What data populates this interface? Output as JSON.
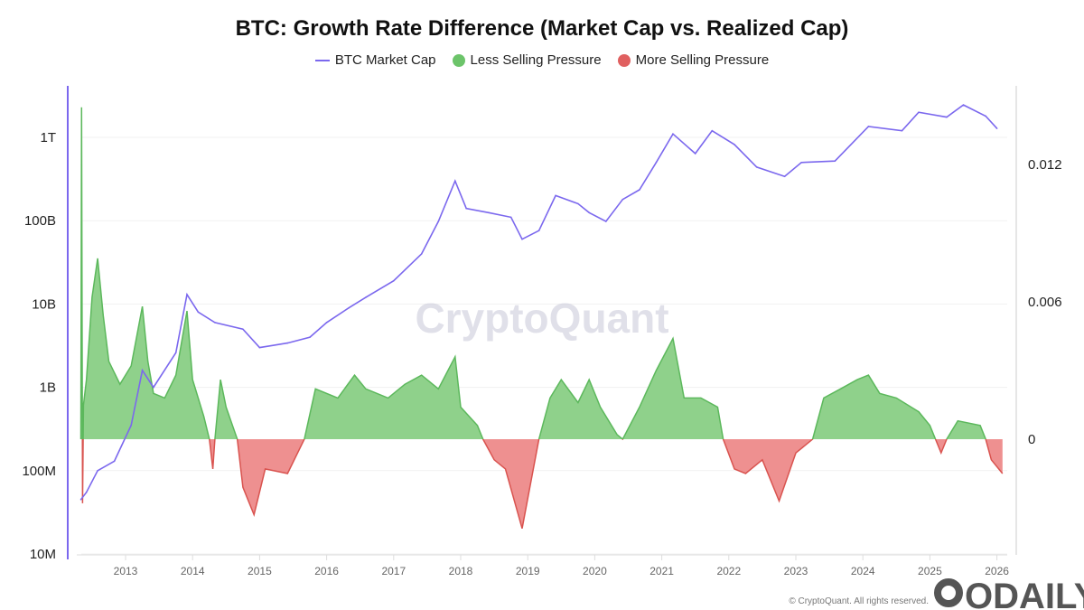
{
  "chart_data": {
    "type": "area",
    "title": "BTC: Growth Rate Difference (Market Cap vs. Realized Cap)",
    "legend": [
      "BTC Market Cap",
      "Less Selling Pressure",
      "More Selling Pressure"
    ],
    "legend_placement": "top",
    "watermark": "CryptoQuant",
    "copyright": "© CryptoQuant. All rights reserved.",
    "logo": "ODAILY",
    "colors": {
      "market_cap": "#7b68ee",
      "positive": "#5cb85c",
      "positive_fill": "#8fd18b",
      "negative": "#d9534f",
      "negative_fill": "#ee9090"
    },
    "x_ticks": [
      "2013",
      "2014",
      "2015",
      "2016",
      "2017",
      "2018",
      "2019",
      "2020",
      "2021",
      "2022",
      "2023",
      "2024",
      "2025",
      "2026"
    ],
    "xlim": [
      "2012-04-20",
      "2026-02-15"
    ],
    "y_left": {
      "scale": "log",
      "ticks": [
        "10M",
        "100M",
        "1B",
        "10B",
        "100B",
        "1T"
      ],
      "tick_values": [
        10000000.0,
        100000000.0,
        1000000000.0,
        10000000000.0,
        100000000000.0,
        1000000000000.0
      ],
      "ylim": [
        10000000.0,
        3500000000000.0
      ]
    },
    "y_right": {
      "scale": "linear",
      "ticks": [
        "0",
        "0.006",
        "0.012"
      ],
      "tick_values": [
        0,
        0.006,
        0.012
      ],
      "ylim": [
        -0.005,
        0.0148
      ]
    },
    "grid": true,
    "series": [
      {
        "name": "BTC Market Cap",
        "axis": "left",
        "points": [
          [
            "2012-05",
            45000000.0
          ],
          [
            "2012-06",
            55000000.0
          ],
          [
            "2012-08",
            100000000.0
          ],
          [
            "2012-11",
            130000000.0
          ],
          [
            "2013-02",
            350000000.0
          ],
          [
            "2013-04",
            1600000000.0
          ],
          [
            "2013-06",
            1000000000.0
          ],
          [
            "2013-10",
            2600000000.0
          ],
          [
            "2013-12",
            13000000000.0
          ],
          [
            "2014-02",
            8000000000.0
          ],
          [
            "2014-05",
            6000000000.0
          ],
          [
            "2014-10",
            5000000000.0
          ],
          [
            "2015-01",
            3000000000.0
          ],
          [
            "2015-06",
            3400000000.0
          ],
          [
            "2015-10",
            4000000000.0
          ],
          [
            "2016-01",
            6000000000.0
          ],
          [
            "2016-05",
            9000000000.0
          ],
          [
            "2016-08",
            12000000000.0
          ],
          [
            "2017-01",
            19000000000.0
          ],
          [
            "2017-06",
            40000000000.0
          ],
          [
            "2017-09",
            98000000000.0
          ],
          [
            "2017-12",
            300000000000.0
          ],
          [
            "2018-02",
            140000000000.0
          ],
          [
            "2018-06",
            125000000000.0
          ],
          [
            "2018-10",
            110000000000.0
          ],
          [
            "2018-12",
            60000000000.0
          ],
          [
            "2019-03",
            76000000000.0
          ],
          [
            "2019-06",
            200000000000.0
          ],
          [
            "2019-10",
            160000000000.0
          ],
          [
            "2019-12",
            125000000000.0
          ],
          [
            "2020-03",
            98000000000.0
          ],
          [
            "2020-06",
            180000000000.0
          ],
          [
            "2020-09",
            235000000000.0
          ],
          [
            "2020-12",
            500000000000.0
          ],
          [
            "2021-03",
            1100000000000.0
          ],
          [
            "2021-07",
            640000000000.0
          ],
          [
            "2021-10",
            1200000000000.0
          ],
          [
            "2022-02",
            820000000000.0
          ],
          [
            "2022-06",
            440000000000.0
          ],
          [
            "2022-11",
            340000000000.0
          ],
          [
            "2023-02",
            500000000000.0
          ],
          [
            "2023-08",
            520000000000.0
          ],
          [
            "2024-02",
            1350000000000.0
          ],
          [
            "2024-08",
            1200000000000.0
          ],
          [
            "2024-11",
            2000000000000.0
          ],
          [
            "2025-04",
            1750000000000.0
          ],
          [
            "2025-07",
            2450000000000.0
          ],
          [
            "2025-11",
            1800000000000.0
          ],
          [
            "2026-01",
            1280000000000.0
          ]
        ]
      },
      {
        "name": "Growth Rate Difference",
        "axis": "right",
        "points": [
          [
            "2012-05-01",
            0
          ],
          [
            "2012-05-05",
            0.0145
          ],
          [
            "2012-05-10",
            -0.0028
          ],
          [
            "2012-05-15",
            0.0015
          ],
          [
            "2012-06",
            0.0026
          ],
          [
            "2012-07",
            0.0062
          ],
          [
            "2012-08",
            0.0079
          ],
          [
            "2012-09",
            0.0054
          ],
          [
            "2012-10",
            0.0034
          ],
          [
            "2012-12",
            0.0024
          ],
          [
            "2013-02",
            0.0032
          ],
          [
            "2013-04",
            0.0058
          ],
          [
            "2013-05",
            0.0034
          ],
          [
            "2013-06",
            0.002
          ],
          [
            "2013-08",
            0.0018
          ],
          [
            "2013-10",
            0.0028
          ],
          [
            "2013-12",
            0.0056
          ],
          [
            "2014-01",
            0.0026
          ],
          [
            "2014-03",
            0.001
          ],
          [
            "2014-04-01",
            0
          ],
          [
            "2014-04-20",
            -0.0013
          ],
          [
            "2014-05-01",
            0
          ],
          [
            "2014-06",
            0.0026
          ],
          [
            "2014-07",
            0.0014
          ],
          [
            "2014-09",
            0
          ],
          [
            "2014-10",
            -0.0021
          ],
          [
            "2014-12",
            -0.0033
          ],
          [
            "2015-02",
            -0.0013
          ],
          [
            "2015-06",
            -0.0015
          ],
          [
            "2015-09",
            0
          ],
          [
            "2015-11",
            0.0022
          ],
          [
            "2016-03",
            0.0018
          ],
          [
            "2016-06",
            0.0028
          ],
          [
            "2016-08",
            0.0022
          ],
          [
            "2016-12",
            0.0018
          ],
          [
            "2017-03",
            0.0024
          ],
          [
            "2017-06",
            0.0028
          ],
          [
            "2017-09",
            0.0022
          ],
          [
            "2017-12",
            0.0036
          ],
          [
            "2018-01",
            0.0014
          ],
          [
            "2018-04",
            0.0006
          ],
          [
            "2018-05",
            0
          ],
          [
            "2018-07",
            -0.0009
          ],
          [
            "2018-09",
            -0.0013
          ],
          [
            "2018-12",
            -0.0039
          ],
          [
            "2019-02",
            -0.0013
          ],
          [
            "2019-03",
            0
          ],
          [
            "2019-05",
            0.0018
          ],
          [
            "2019-07",
            0.0026
          ],
          [
            "2019-10",
            0.0016
          ],
          [
            "2019-12",
            0.0026
          ],
          [
            "2020-02",
            0.0014
          ],
          [
            "2020-05",
            0.0002
          ],
          [
            "2020-06",
            0
          ],
          [
            "2020-09",
            0.0014
          ],
          [
            "2020-12",
            0.003
          ],
          [
            "2021-03",
            0.0044
          ],
          [
            "2021-05",
            0.0018
          ],
          [
            "2021-08",
            0.0018
          ],
          [
            "2021-11",
            0.0014
          ],
          [
            "2021-12",
            0
          ],
          [
            "2022-02",
            -0.0013
          ],
          [
            "2022-04",
            -0.0015
          ],
          [
            "2022-07",
            -0.0009
          ],
          [
            "2022-10",
            -0.0027
          ],
          [
            "2023-01",
            -0.0006
          ],
          [
            "2023-04",
            0
          ],
          [
            "2023-06",
            0.0018
          ],
          [
            "2023-09",
            0.0022
          ],
          [
            "2023-12",
            0.0026
          ],
          [
            "2024-02",
            0.0028
          ],
          [
            "2024-04",
            0.002
          ],
          [
            "2024-07",
            0.0018
          ],
          [
            "2024-11",
            0.0012
          ],
          [
            "2025-01",
            0.0006
          ],
          [
            "2025-02",
            0
          ],
          [
            "2025-03",
            -0.0006
          ],
          [
            "2025-04",
            0
          ],
          [
            "2025-06",
            0.0008
          ],
          [
            "2025-10",
            0.0006
          ],
          [
            "2025-11",
            0
          ],
          [
            "2025-12",
            -0.0009
          ],
          [
            "2026-02",
            -0.0015
          ]
        ]
      }
    ]
  }
}
